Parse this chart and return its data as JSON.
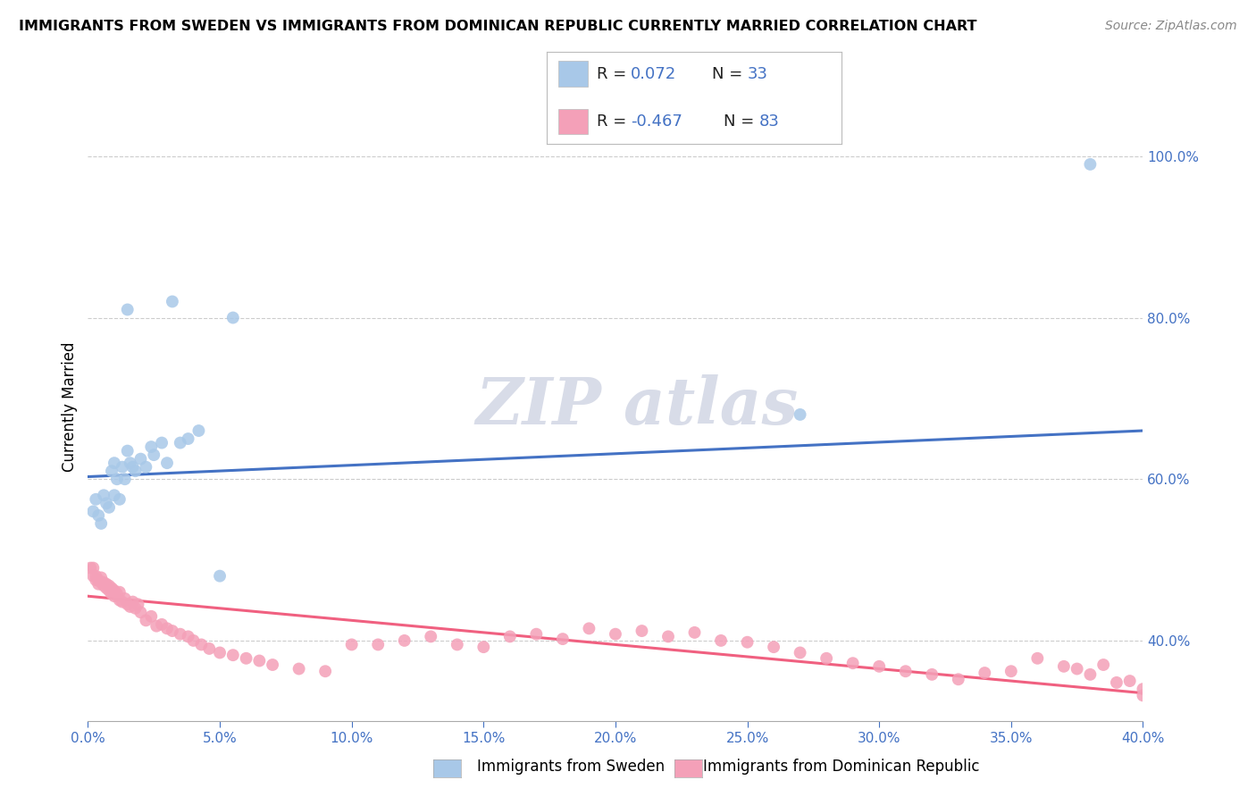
{
  "title": "IMMIGRANTS FROM SWEDEN VS IMMIGRANTS FROM DOMINICAN REPUBLIC CURRENTLY MARRIED CORRELATION CHART",
  "source": "Source: ZipAtlas.com",
  "ylabel": "Currently Married",
  "legend_label_blue": "Immigrants from Sweden",
  "legend_label_pink": "Immigrants from Dominican Republic",
  "color_blue": "#a8c8e8",
  "color_pink": "#f4a0b8",
  "color_blue_line": "#4472c4",
  "color_pink_line": "#f06080",
  "xmin": 0.0,
  "xmax": 0.4,
  "ymin": 0.3,
  "ymax": 1.08,
  "yticks": [
    0.4,
    0.6,
    0.8,
    1.0
  ],
  "xticks": [
    0.0,
    0.05,
    0.1,
    0.15,
    0.2,
    0.25,
    0.3,
    0.35,
    0.4
  ],
  "sweden_x": [
    0.002,
    0.003,
    0.004,
    0.005,
    0.006,
    0.007,
    0.008,
    0.009,
    0.01,
    0.01,
    0.011,
    0.012,
    0.013,
    0.014,
    0.015,
    0.016,
    0.017,
    0.018,
    0.02,
    0.022,
    0.024,
    0.025,
    0.028,
    0.03,
    0.032,
    0.035,
    0.038,
    0.042,
    0.05,
    0.055,
    0.27,
    0.38,
    0.015
  ],
  "sweden_y": [
    0.56,
    0.575,
    0.555,
    0.545,
    0.58,
    0.57,
    0.565,
    0.61,
    0.58,
    0.62,
    0.6,
    0.575,
    0.615,
    0.6,
    0.635,
    0.62,
    0.615,
    0.61,
    0.625,
    0.615,
    0.64,
    0.63,
    0.645,
    0.62,
    0.82,
    0.645,
    0.65,
    0.66,
    0.48,
    0.8,
    0.68,
    0.99,
    0.81
  ],
  "dr_x": [
    0.001,
    0.002,
    0.002,
    0.003,
    0.003,
    0.004,
    0.004,
    0.005,
    0.005,
    0.006,
    0.006,
    0.007,
    0.007,
    0.008,
    0.008,
    0.009,
    0.009,
    0.01,
    0.01,
    0.011,
    0.012,
    0.012,
    0.013,
    0.014,
    0.015,
    0.016,
    0.017,
    0.018,
    0.019,
    0.02,
    0.022,
    0.024,
    0.026,
    0.028,
    0.03,
    0.032,
    0.035,
    0.038,
    0.04,
    0.043,
    0.046,
    0.05,
    0.055,
    0.06,
    0.065,
    0.07,
    0.08,
    0.09,
    0.1,
    0.11,
    0.12,
    0.13,
    0.14,
    0.15,
    0.16,
    0.17,
    0.18,
    0.19,
    0.2,
    0.21,
    0.22,
    0.23,
    0.24,
    0.25,
    0.26,
    0.27,
    0.28,
    0.29,
    0.3,
    0.31,
    0.32,
    0.33,
    0.34,
    0.35,
    0.36,
    0.37,
    0.38,
    0.39,
    0.4,
    0.4,
    0.395,
    0.385,
    0.375
  ],
  "dr_y": [
    0.49,
    0.48,
    0.49,
    0.475,
    0.48,
    0.47,
    0.475,
    0.472,
    0.478,
    0.468,
    0.472,
    0.465,
    0.47,
    0.462,
    0.468,
    0.458,
    0.465,
    0.455,
    0.462,
    0.458,
    0.45,
    0.46,
    0.448,
    0.452,
    0.445,
    0.442,
    0.448,
    0.44,
    0.445,
    0.435,
    0.425,
    0.43,
    0.418,
    0.42,
    0.415,
    0.412,
    0.408,
    0.405,
    0.4,
    0.395,
    0.39,
    0.385,
    0.382,
    0.378,
    0.375,
    0.37,
    0.365,
    0.362,
    0.395,
    0.395,
    0.4,
    0.405,
    0.395,
    0.392,
    0.405,
    0.408,
    0.402,
    0.415,
    0.408,
    0.412,
    0.405,
    0.41,
    0.4,
    0.398,
    0.392,
    0.385,
    0.378,
    0.372,
    0.368,
    0.362,
    0.358,
    0.352,
    0.36,
    0.362,
    0.378,
    0.368,
    0.358,
    0.348,
    0.34,
    0.332,
    0.35,
    0.37,
    0.365
  ],
  "sw_line_x0": 0.0,
  "sw_line_x1": 0.4,
  "sw_line_y0": 0.603,
  "sw_line_y1": 0.66,
  "dr_line_x0": 0.0,
  "dr_line_x1": 0.4,
  "dr_line_y0": 0.455,
  "dr_line_y1": 0.335,
  "watermark_text": "ZIP atlas",
  "watermark_color": "#d8dce8",
  "grid_color": "#cccccc",
  "background_color": "#ffffff",
  "title_fontsize": 11.5,
  "source_fontsize": 10,
  "tick_fontsize": 11,
  "ylabel_fontsize": 12
}
